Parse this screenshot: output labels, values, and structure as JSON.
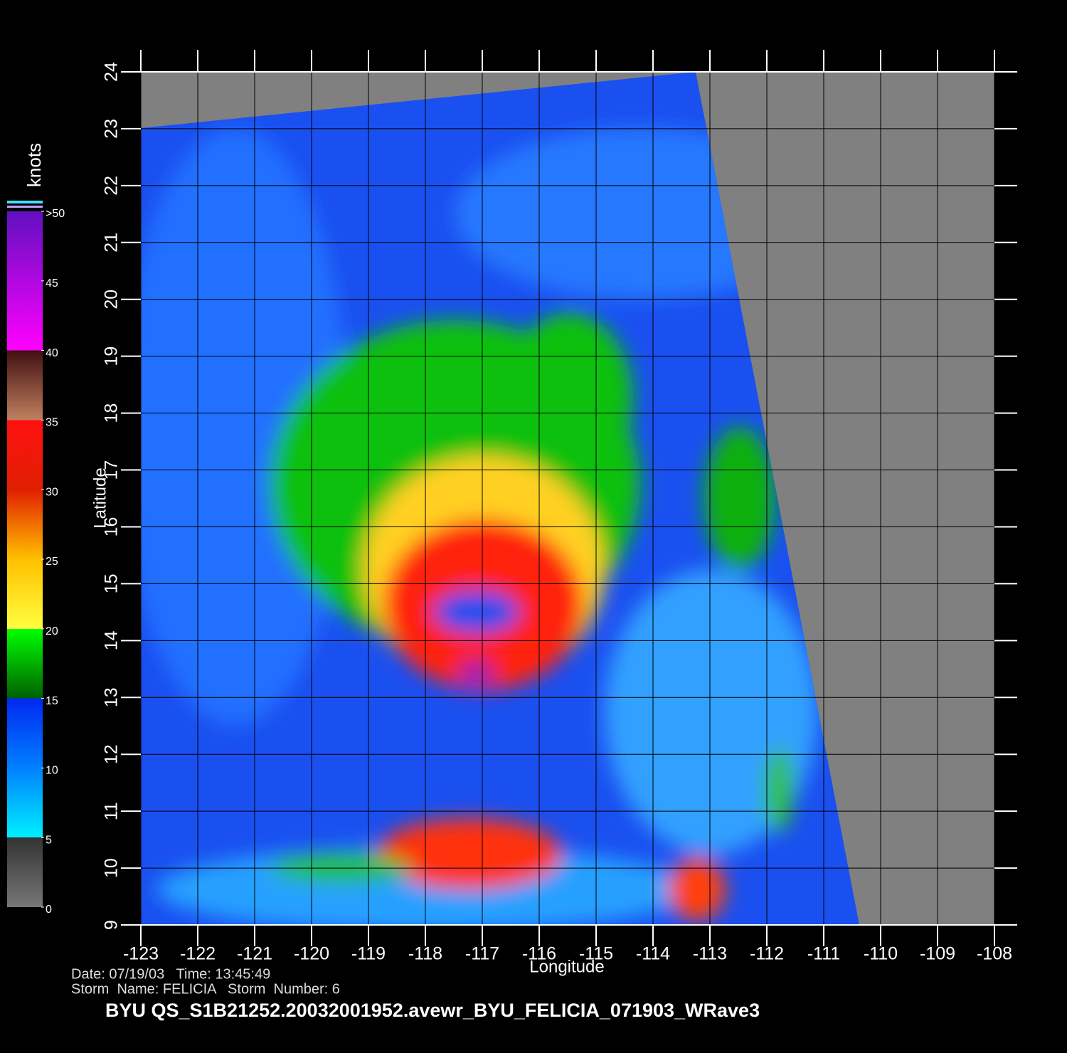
{
  "chart_data": {
    "type": "map",
    "x_label": "Longitude",
    "y_label": "Latitude",
    "xlim": [
      -123,
      -108
    ],
    "ylim": [
      9,
      24
    ],
    "xticks": [
      -123,
      -122,
      -121,
      -120,
      -119,
      -118,
      -117,
      -116,
      -115,
      -114,
      -113,
      -112,
      -111,
      -110,
      -109,
      -108
    ],
    "yticks": [
      9,
      10,
      11,
      12,
      13,
      14,
      15,
      16,
      17,
      18,
      19,
      20,
      21,
      22,
      23,
      24
    ],
    "grid": true,
    "colorbar": {
      "label": "knots",
      "lim": [
        0,
        50
      ],
      "ticks": [
        0,
        5,
        10,
        15,
        20,
        25,
        30,
        35,
        40,
        45,
        {
          "value": 50,
          "label": ">50"
        }
      ]
    }
  },
  "info": {
    "date_time": "Date: 07/19/03   Time: 13:45:49",
    "storm": "Storm  Name: FELICIA   Storm  Number: 6",
    "file": "BYU  QS_S1B21252.20032001952.avewr_BYU_FELICIA_071903_WRave3"
  }
}
